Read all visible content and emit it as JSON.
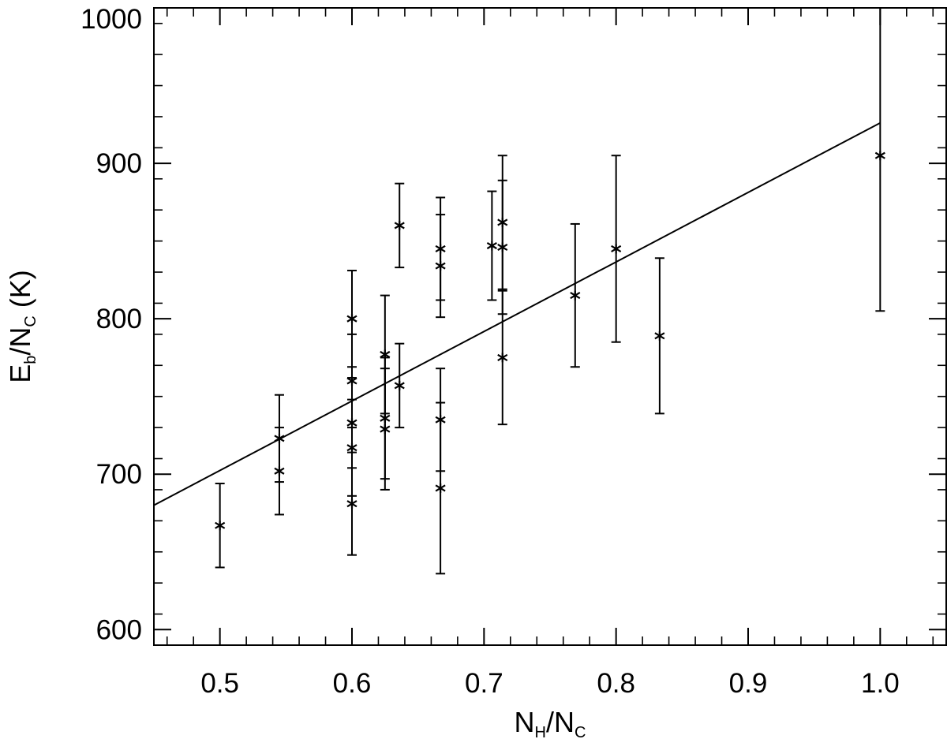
{
  "chart_data": {
    "type": "scatter",
    "xlabel": {
      "main1": "N",
      "sub1": "H",
      "slash": "/",
      "main2": "N",
      "sub2": "C"
    },
    "ylabel": {
      "main1": "E",
      "sub1": "b",
      "slash": "/",
      "main2": "N",
      "sub2": "C",
      "unit": " (K)"
    },
    "xlim": [
      0.45,
      1.05
    ],
    "ylim": [
      590,
      1000
    ],
    "x_ticks": [
      {
        "value": 0.5,
        "label": "0.5"
      },
      {
        "value": 0.6,
        "label": "0.6"
      },
      {
        "value": 0.7,
        "label": "0.7"
      },
      {
        "value": 0.8,
        "label": "0.8"
      },
      {
        "value": 0.9,
        "label": "0.9"
      },
      {
        "value": 1.0,
        "label": "1.0"
      }
    ],
    "y_ticks": [
      {
        "value": 600,
        "label": "600"
      },
      {
        "value": 700,
        "label": "700"
      },
      {
        "value": 800,
        "label": "800"
      },
      {
        "value": 900,
        "label": "900"
      },
      {
        "value": 1000,
        "label": "1000"
      }
    ],
    "x_minor_step": 0.02,
    "y_minor_step": 20,
    "marker": "asterisk",
    "points": [
      {
        "x": 0.5,
        "y": 667,
        "err": 27
      },
      {
        "x": 0.545,
        "y": 723,
        "err": 28
      },
      {
        "x": 0.545,
        "y": 702,
        "err": 28
      },
      {
        "x": 0.6,
        "y": 800,
        "err": 31
      },
      {
        "x": 0.6,
        "y": 760,
        "err": 30
      },
      {
        "x": 0.6,
        "y": 733,
        "err": 29
      },
      {
        "x": 0.6,
        "y": 717,
        "err": 31
      },
      {
        "x": 0.6,
        "y": 681,
        "err": 33
      },
      {
        "x": 0.625,
        "y": 777,
        "err": 38
      },
      {
        "x": 0.625,
        "y": 736,
        "err": 39
      },
      {
        "x": 0.625,
        "y": 729,
        "err": 39
      },
      {
        "x": 0.636,
        "y": 757,
        "err": 27
      },
      {
        "x": 0.636,
        "y": 860,
        "err": 27
      },
      {
        "x": 0.667,
        "y": 845,
        "err": 33
      },
      {
        "x": 0.667,
        "y": 834,
        "err": 33
      },
      {
        "x": 0.667,
        "y": 735,
        "err": 33
      },
      {
        "x": 0.667,
        "y": 691,
        "err": 55
      },
      {
        "x": 0.706,
        "y": 847,
        "err": 35
      },
      {
        "x": 0.714,
        "y": 862,
        "err": 43
      },
      {
        "x": 0.714,
        "y": 846,
        "err": 43
      },
      {
        "x": 0.714,
        "y": 775,
        "err": 43
      },
      {
        "x": 0.769,
        "y": 815,
        "err": 46
      },
      {
        "x": 0.8,
        "y": 845,
        "err": 60
      },
      {
        "x": 0.833,
        "y": 789,
        "err": 50
      },
      {
        "x": 1.0,
        "y": 905,
        "err": 100
      }
    ],
    "fit_line": {
      "x": [
        0.45,
        1.0
      ],
      "y": [
        680,
        926
      ]
    }
  }
}
